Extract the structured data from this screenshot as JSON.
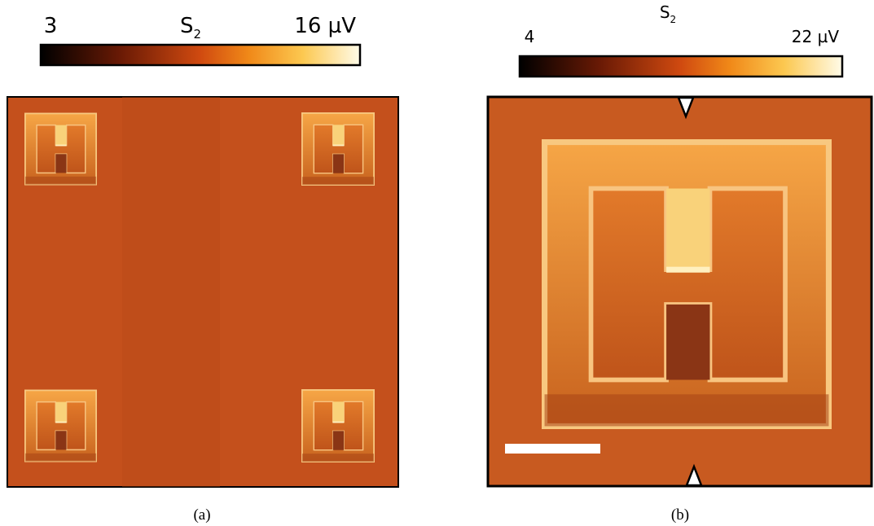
{
  "panels": [
    {
      "colorbar": {
        "min_label": "3",
        "symbol": "S",
        "subscript": "2",
        "max_label": "16 µV"
      },
      "caption": "(a)"
    },
    {
      "colorbar": {
        "min_label": "4",
        "symbol": "S",
        "subscript": "2",
        "max_label": "22 µV"
      },
      "caption": "(b)"
    }
  ]
}
